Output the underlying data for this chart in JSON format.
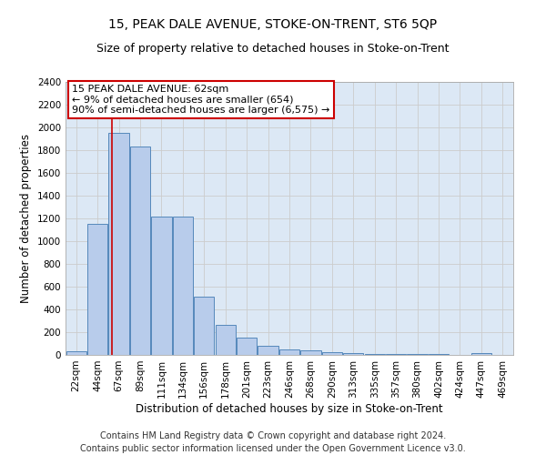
{
  "title": "15, PEAK DALE AVENUE, STOKE-ON-TRENT, ST6 5QP",
  "subtitle": "Size of property relative to detached houses in Stoke-on-Trent",
  "xlabel": "Distribution of detached houses by size in Stoke-on-Trent",
  "ylabel": "Number of detached properties",
  "categories": [
    "22sqm",
    "44sqm",
    "67sqm",
    "89sqm",
    "111sqm",
    "134sqm",
    "156sqm",
    "178sqm",
    "201sqm",
    "223sqm",
    "246sqm",
    "268sqm",
    "290sqm",
    "313sqm",
    "335sqm",
    "357sqm",
    "380sqm",
    "402sqm",
    "424sqm",
    "447sqm",
    "469sqm"
  ],
  "values": [
    30,
    1150,
    1950,
    1830,
    1215,
    1215,
    515,
    265,
    150,
    80,
    50,
    42,
    25,
    18,
    10,
    8,
    5,
    5,
    3,
    20,
    3
  ],
  "bar_color": "#b8cceb",
  "bar_edge_color": "#5588bb",
  "grid_color": "#cccccc",
  "background_color": "#dce8f5",
  "annotation_line1": "15 PEAK DALE AVENUE: 62sqm",
  "annotation_line2": "← 9% of detached houses are smaller (654)",
  "annotation_line3": "90% of semi-detached houses are larger (6,575) →",
  "annotation_box_color": "#ffffff",
  "annotation_box_edge_color": "#cc0000",
  "red_line_x": 1.68,
  "ylim": [
    0,
    2400
  ],
  "yticks": [
    0,
    200,
    400,
    600,
    800,
    1000,
    1200,
    1400,
    1600,
    1800,
    2000,
    2200,
    2400
  ],
  "footer_line1": "Contains HM Land Registry data © Crown copyright and database right 2024.",
  "footer_line2": "Contains public sector information licensed under the Open Government Licence v3.0.",
  "title_fontsize": 10,
  "subtitle_fontsize": 9,
  "xlabel_fontsize": 8.5,
  "ylabel_fontsize": 8.5,
  "tick_fontsize": 7.5,
  "footer_fontsize": 7,
  "annotation_fontsize": 8
}
